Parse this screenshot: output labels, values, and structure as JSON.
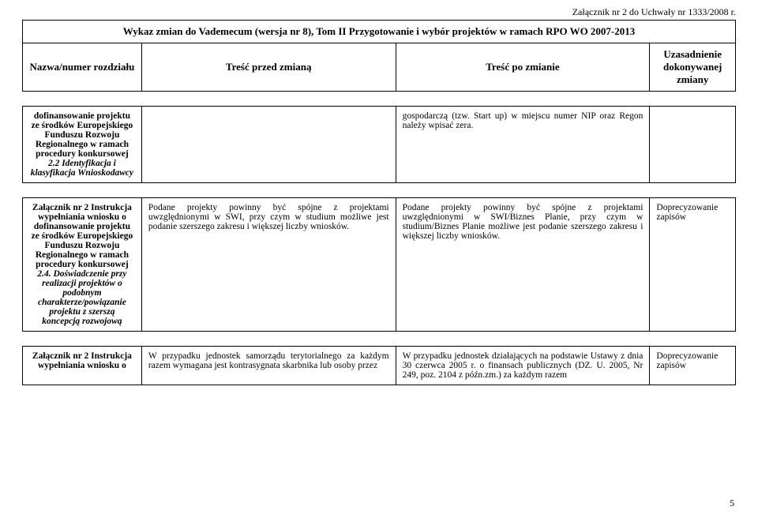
{
  "top_right": "Załącznik nr 2 do Uchwały nr 1333/2008 r.",
  "header": {
    "title": "Wykaz zmian do Vademecum (wersja nr 8), Tom II Przygotowanie i wybór projektów w ramach RPO WO 2007-2013",
    "col1": "Nazwa/numer rozdziału",
    "col2": "Treść przed zmianą",
    "col3": "Treść po zmianie",
    "col4": "Uzasadnienie dokonywanej zmiany"
  },
  "rows": [
    {
      "c1_plain": "dofinansowanie projektu ze środków Europejskiego Funduszu Rozwoju Regionalnego w ramach procedury konkursowej",
      "c1_italic": "2.2 Identyfikacja i klasyfikacja Wnioskodawcy",
      "c2": "",
      "c3": "gospodarczą (tzw. Start up) w miejscu numer NIP oraz Regon należy wpisać zera.",
      "c4": ""
    },
    {
      "c1_plain_pre": "Załącznik nr 2 Instrukcja wypełniania wniosku o dofinansowanie projektu ze środków Europejskiego Funduszu Rozwoju Regionalnego w ramach procedury konkursowej",
      "c1_italic": "2.4. Doświadczenie przy realizacji projektów o podobnym charakterze/powiązanie projektu z szerszą koncepcją rozwojową",
      "c2": "Podane projekty powinny być spójne z projektami uwzględnionymi w SWI, przy czym w studium możliwe jest podanie szerszego zakresu i większej liczby wniosków.",
      "c3": "Podane projekty powinny być spójne z projektami uwzględnionymi w SWI/Biznes Planie, przy czym w studium/Biznes Planie możliwe jest podanie szerszego zakresu i większej liczby wniosków.",
      "c4": "Doprecyzowanie zapisów"
    },
    {
      "c1_plain": "Załącznik nr 2 Instrukcja wypełniania wniosku o",
      "c2": "W przypadku jednostek samorządu terytorialnego za każdym razem wymagana jest kontrasygnata skarbnika lub osoby przez",
      "c3": "W przypadku jednostek działających na podstawie Ustawy z dnia 30 czerwca 2005 r. o finansach publicznych (DZ. U. 2005, Nr 249, poz. 2104 z późn.zm.) za każdym razem",
      "c4": "Doprecyzowanie zapisów"
    }
  ],
  "page_number": "5",
  "colors": {
    "text": "#000000",
    "background": "#ffffff",
    "border": "#000000"
  }
}
